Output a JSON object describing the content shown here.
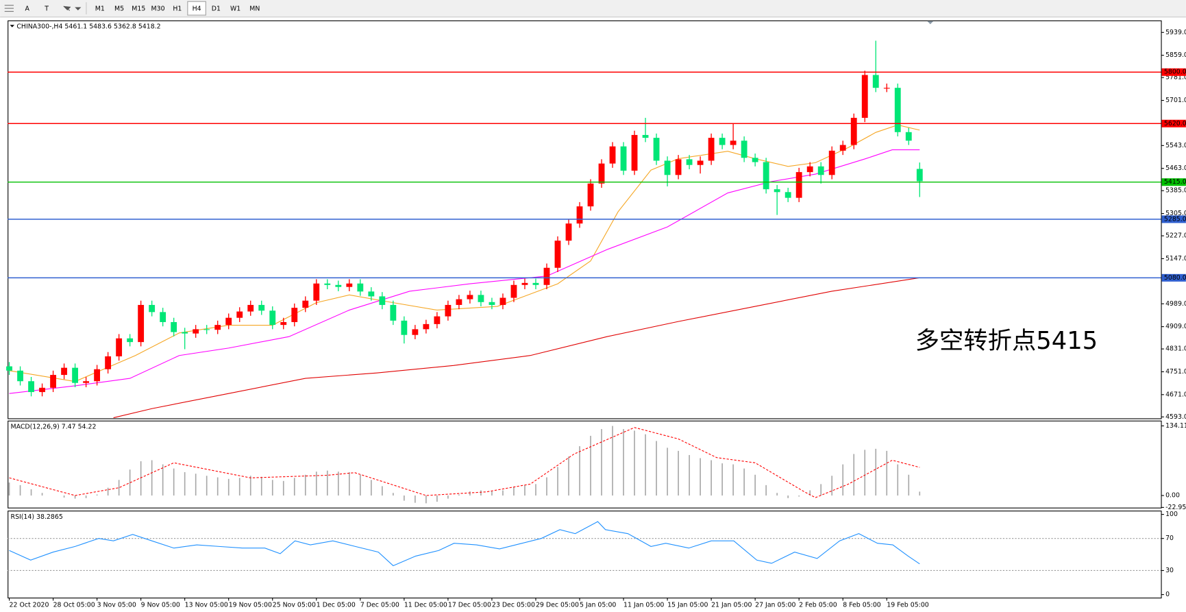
{
  "toolbar": {
    "tools": [
      "A",
      "T"
    ],
    "timeframes": [
      "M1",
      "M5",
      "M15",
      "M30",
      "H1",
      "H4",
      "D1",
      "W1",
      "MN"
    ],
    "active": "H4"
  },
  "chart_data": [
    {
      "type": "candlestick",
      "symbol": "CHINA300-,H4",
      "x": [
        0,
        2,
        4,
        6,
        8,
        10,
        12,
        14,
        16,
        18,
        20,
        22,
        24,
        26,
        28,
        30,
        32,
        34,
        36,
        38,
        40,
        42,
        44,
        46,
        48,
        50,
        52,
        54,
        56,
        58,
        60,
        62,
        64,
        66,
        68,
        70,
        72,
        74,
        76,
        78,
        80,
        82,
        84,
        86,
        88,
        90,
        92,
        94,
        96,
        98,
        100,
        102,
        104,
        106,
        108,
        110,
        112,
        114,
        116,
        118,
        120,
        122,
        124,
        126,
        128,
        130,
        132,
        134,
        136,
        138,
        140,
        142,
        144,
        146,
        148,
        150,
        152,
        154,
        156,
        158,
        160,
        162,
        164,
        166
      ],
      "open": [
        4770,
        4755,
        4718,
        4680,
        4695,
        4740,
        4765,
        4712,
        4718,
        4760,
        4805,
        4868,
        4855,
        4985,
        4960,
        4925,
        4890,
        4885,
        4900,
        4898,
        4915,
        4940,
        4962,
        4985,
        4965,
        4915,
        4925,
        4975,
        5000,
        5060,
        5055,
        5048,
        5060,
        5032,
        5015,
        4985,
        4930,
        4880,
        4900,
        4918,
        4945,
        4985,
        5005,
        5020,
        4995,
        4985,
        5010,
        5055,
        5062,
        5055,
        5115,
        5210,
        5270,
        5330,
        5410,
        5480,
        5540,
        5455,
        5580,
        5570,
        5490,
        5440,
        5495,
        5475,
        5490,
        5570,
        5545,
        5560,
        5500,
        5485,
        5390,
        5380,
        5360,
        5450,
        5470,
        5440,
        5525,
        5545,
        5640,
        5790,
        5745,
        5745,
        5590,
        5461.1
      ],
      "high": [
        4785,
        4770,
        4733,
        4710,
        4755,
        4780,
        4780,
        4733,
        4775,
        4820,
        4883,
        4883,
        5000,
        5000,
        4975,
        4940,
        4905,
        4915,
        4915,
        4930,
        4955,
        4977,
        5000,
        5000,
        4980,
        4940,
        4990,
        5015,
        5075,
        5075,
        5070,
        5075,
        5075,
        5047,
        5030,
        5000,
        4945,
        4915,
        4933,
        4960,
        5000,
        5020,
        5035,
        5035,
        5010,
        5025,
        5070,
        5077,
        5077,
        5130,
        5225,
        5285,
        5345,
        5425,
        5495,
        5555,
        5555,
        5595,
        5640,
        5585,
        5505,
        5510,
        5510,
        5505,
        5585,
        5585,
        5620,
        5575,
        5515,
        5500,
        5405,
        5395,
        5465,
        5485,
        5485,
        5540,
        5560,
        5655,
        5805,
        5910,
        5760,
        5760,
        5605,
        5483.6
      ],
      "low": [
        4740,
        4703,
        4665,
        4665,
        4680,
        4725,
        4697,
        4697,
        4703,
        4745,
        4790,
        4840,
        4840,
        4945,
        4910,
        4875,
        4830,
        4870,
        4883,
        4883,
        4900,
        4925,
        4947,
        4950,
        4900,
        4900,
        4910,
        4960,
        4985,
        5040,
        5033,
        5033,
        5017,
        5000,
        4970,
        4915,
        4850,
        4865,
        4885,
        4903,
        4930,
        4970,
        4990,
        4980,
        4970,
        4970,
        4995,
        5040,
        5040,
        5040,
        5100,
        5195,
        5255,
        5315,
        5395,
        5465,
        5440,
        5440,
        5555,
        5475,
        5400,
        5425,
        5460,
        5445,
        5475,
        5530,
        5530,
        5485,
        5470,
        5375,
        5300,
        5345,
        5345,
        5435,
        5410,
        5425,
        5510,
        5530,
        5625,
        5730,
        5730,
        5575,
        5545,
        5362.8
      ],
      "close": [
        4755,
        4718,
        4680,
        4695,
        4740,
        4765,
        4712,
        4718,
        4760,
        4805,
        4868,
        4855,
        4985,
        4960,
        4925,
        4890,
        4885,
        4900,
        4898,
        4915,
        4940,
        4962,
        4985,
        4965,
        4915,
        4925,
        4975,
        5000,
        5060,
        5055,
        5048,
        5060,
        5032,
        5015,
        4985,
        4930,
        4880,
        4900,
        4918,
        4945,
        4985,
        5005,
        5020,
        4995,
        4985,
        5010,
        5055,
        5062,
        5055,
        5115,
        5210,
        5270,
        5330,
        5410,
        5480,
        5540,
        5455,
        5580,
        5570,
        5490,
        5440,
        5495,
        5475,
        5490,
        5570,
        5545,
        5560,
        5500,
        5485,
        5390,
        5380,
        5360,
        5450,
        5470,
        5440,
        5525,
        5545,
        5640,
        5790,
        5745,
        5745,
        5590,
        5560,
        5418.2
      ],
      "up_color": "#ff0000",
      "down_color": "#00e676",
      "xlim": [
        -0.3,
        210
      ],
      "ylim": [
        4588,
        5981
      ],
      "yticks": [
        {
          "value": 5939,
          "label": "5939.0"
        },
        {
          "value": 5859,
          "label": "5859.0"
        },
        {
          "value": 5781,
          "label": "5781.0"
        },
        {
          "value": 5701,
          "label": "5701.0"
        },
        {
          "value": 5543,
          "label": "5543.0"
        },
        {
          "value": 5463,
          "label": "5463.0"
        },
        {
          "value": 5385,
          "label": "5385.0"
        },
        {
          "value": 5305,
          "label": "5305.0"
        },
        {
          "value": 5227,
          "label": "5227.0"
        },
        {
          "value": 5147,
          "label": "5147.0"
        },
        {
          "value": 4989,
          "label": "4989.0"
        },
        {
          "value": 4909,
          "label": "4909.0"
        },
        {
          "value": 4831,
          "label": "4831.0"
        },
        {
          "value": 4751,
          "label": "4751.0"
        },
        {
          "value": 4671,
          "label": "4671.0"
        },
        {
          "value": 4593,
          "label": "4593.0"
        }
      ],
      "xticks": [
        {
          "value": 0,
          "label": "22 Oct 2020"
        },
        {
          "value": 8,
          "label": "28 Oct 05:00"
        },
        {
          "value": 16,
          "label": "3 Nov 05:00"
        },
        {
          "value": 24,
          "label": "9 Nov 05:00"
        },
        {
          "value": 32,
          "label": "13 Nov 05:00"
        },
        {
          "value": 40,
          "label": "19 Nov 05:00"
        },
        {
          "value": 48,
          "label": "25 Nov 05:00"
        },
        {
          "value": 56,
          "label": "1 Dec 05:00"
        },
        {
          "value": 64,
          "label": "7 Dec 05:00"
        },
        {
          "value": 72,
          "label": "11 Dec 05:00"
        },
        {
          "value": 80,
          "label": "17 Dec 05:00"
        },
        {
          "value": 88,
          "label": "23 Dec 05:00"
        },
        {
          "value": 96,
          "label": "29 Dec 05:00"
        },
        {
          "value": 104,
          "label": "5 Jan 05:00"
        },
        {
          "value": 112,
          "label": "11 Jan 05:00"
        },
        {
          "value": 120,
          "label": "15 Jan 05:00"
        },
        {
          "value": 128,
          "label": "21 Jan 05:00"
        },
        {
          "value": 136,
          "label": "27 Jan 05:00"
        },
        {
          "value": 144,
          "label": "2 Feb 05:00"
        },
        {
          "value": 152,
          "label": "8 Feb 05:00"
        },
        {
          "value": 160,
          "label": "19 Feb 05:00"
        }
      ],
      "moving_averages": [
        {
          "color": "#f5a623",
          "x": [
            0,
            12,
            23,
            31,
            40,
            48,
            56,
            62,
            70,
            78,
            89,
            100,
            106,
            111,
            117,
            122,
            131,
            136,
            142,
            147,
            153,
            158,
            162,
            166
          ],
          "values": [
            4755,
            4717,
            4808,
            4887,
            4914,
            4914,
            4993,
            5020,
            4993,
            4967,
            4980,
            5059,
            5139,
            5311,
            5457,
            5497,
            5523,
            5497,
            5470,
            5483,
            5536,
            5589,
            5615,
            5597
          ]
        },
        {
          "color": "#ff00ff",
          "x": [
            0,
            12,
            22,
            31,
            40,
            51,
            62,
            73,
            84,
            98,
            109,
            120,
            131,
            139,
            147,
            156,
            161,
            166
          ],
          "values": [
            4675,
            4702,
            4728,
            4808,
            4834,
            4874,
            4967,
            5033,
            5059,
            5086,
            5179,
            5258,
            5377,
            5417,
            5443,
            5496,
            5528,
            5528
          ]
        },
        {
          "color": "#e00000",
          "x": [
            19,
            26,
            40,
            54,
            67,
            81,
            95,
            109,
            122,
            136,
            150,
            166
          ],
          "values": [
            4590,
            4622,
            4675,
            4728,
            4747,
            4773,
            4808,
            4874,
            4927,
            4980,
            5033,
            5080
          ]
        }
      ],
      "levels": [
        {
          "value": 5800,
          "label": "5800.0",
          "color": "#ff0000"
        },
        {
          "value": 5620,
          "label": "5620.0",
          "color": "#ff0000"
        },
        {
          "value": 5415,
          "label": "5415.0",
          "color": "#00c000"
        },
        {
          "value": 5285,
          "label": "5285.0",
          "color": "#3060d0"
        },
        {
          "value": 5080,
          "label": "5080.0",
          "color": "#3060d0"
        }
      ],
      "annotation": {
        "text": "多空转折点5415",
        "color": "#ff0000"
      }
    },
    {
      "type": "macd",
      "title": "MACD(12,26,9)",
      "header_values": [
        7.47,
        54.22
      ],
      "histogram": {
        "color": "#a8a8a8",
        "x": [
          0,
          2,
          4,
          6,
          8,
          10,
          12,
          14,
          16,
          18,
          20,
          22,
          24,
          26,
          28,
          30,
          32,
          34,
          36,
          38,
          40,
          42,
          44,
          46,
          48,
          50,
          52,
          54,
          56,
          58,
          60,
          62,
          64,
          66,
          68,
          70,
          72,
          74,
          76,
          78,
          80,
          82,
          84,
          86,
          88,
          90,
          92,
          94,
          96,
          98,
          100,
          102,
          104,
          106,
          108,
          110,
          112,
          114,
          116,
          118,
          120,
          122,
          124,
          126,
          128,
          130,
          132,
          134,
          136,
          138,
          140,
          142,
          144,
          146,
          148,
          150,
          152,
          154,
          156,
          158,
          160,
          162,
          164,
          166
        ],
        "values": [
          25,
          20,
          12,
          5,
          0,
          -4,
          -6,
          -5,
          2,
          15,
          30,
          50,
          66,
          68,
          60,
          52,
          45,
          42,
          38,
          35,
          32,
          34,
          38,
          36,
          30,
          28,
          34,
          40,
          46,
          48,
          46,
          45,
          40,
          30,
          18,
          5,
          -10,
          -14,
          -15,
          -12,
          -6,
          2,
          8,
          10,
          8,
          10,
          16,
          20,
          22,
          35,
          55,
          75,
          95,
          115,
          128,
          134,
          128,
          125,
          118,
          105,
          92,
          86,
          78,
          72,
          68,
          62,
          60,
          52,
          40,
          20,
          5,
          -5,
          -2,
          10,
          22,
          38,
          60,
          80,
          88,
          90,
          86,
          60,
          40,
          7.47
        ]
      },
      "signal": {
        "color": "#ff0000",
        "x": [
          0,
          12,
          20,
          30,
          44,
          58,
          63,
          76,
          87,
          95,
          103,
          114,
          122,
          129,
          136,
          145,
          147,
          153,
          161,
          166
        ],
        "values": [
          34,
          0,
          15,
          63,
          34,
          39,
          44,
          0,
          7,
          22,
          80,
          131,
          109,
          73,
          63,
          7,
          -4,
          22,
          68,
          54.22
        ]
      },
      "xlim": [
        -0.3,
        210
      ],
      "ylim": [
        -23.3,
        144.3
      ],
      "yticks": [
        134.11,
        {
          "value": 0,
          "label": "0.00"
        },
        -22.95
      ]
    },
    {
      "type": "rsi",
      "title": "RSI(14)",
      "header_value": 38.2865,
      "series": {
        "color": "#1e90ff",
        "x": [
          0,
          3.9,
          8,
          12,
          16.3,
          19,
          22.5,
          26,
          30,
          34.2,
          38.3,
          42.5,
          46.6,
          49.4,
          52.1,
          54.9,
          59,
          63.1,
          67.3,
          70,
          74.1,
          78.3,
          81.1,
          85.2,
          89.4,
          93.5,
          97,
          100.4,
          103.2,
          107.3,
          108.7,
          112.8,
          117,
          119.7,
          123.9,
          128,
          132.1,
          136.3,
          139,
          143.2,
          147.3,
          151.4,
          154.9,
          158.3,
          161.1,
          163.9,
          166
        ],
        "values": [
          55,
          43,
          53,
          60,
          70,
          67,
          75,
          67,
          58,
          62,
          60,
          58,
          58,
          51,
          67,
          62,
          67,
          60,
          53,
          36,
          48,
          55,
          64,
          62,
          57,
          64,
          70,
          81,
          76,
          91,
          81,
          76,
          60,
          64,
          58,
          67,
          67,
          43,
          39,
          53,
          45,
          67,
          76,
          64,
          62,
          48,
          38.2865
        ]
      },
      "dotted_levels": [
        70,
        30
      ],
      "xlim": [
        -0.3,
        210
      ],
      "ylim": [
        -3.8,
        104.7
      ],
      "yticks": [
        100,
        70,
        30,
        0
      ]
    }
  ]
}
